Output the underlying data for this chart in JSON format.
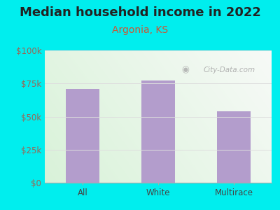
{
  "title": "Median household income in 2022",
  "subtitle": "Argonia, KS",
  "categories": [
    "All",
    "White",
    "Multirace"
  ],
  "values": [
    71000,
    77000,
    54000
  ],
  "bar_color": "#b39dcc",
  "title_color": "#222222",
  "subtitle_color": "#cc5533",
  "ylabel_color": "#996655",
  "xlabel_color": "#444444",
  "background_color": "#00eeee",
  "ylim": [
    0,
    100000
  ],
  "yticks": [
    0,
    25000,
    50000,
    75000,
    100000
  ],
  "ytick_labels": [
    "$0",
    "$25k",
    "$50k",
    "$75k",
    "$100k"
  ],
  "watermark": "City-Data.com",
  "title_fontsize": 13,
  "subtitle_fontsize": 10,
  "tick_fontsize": 8.5
}
